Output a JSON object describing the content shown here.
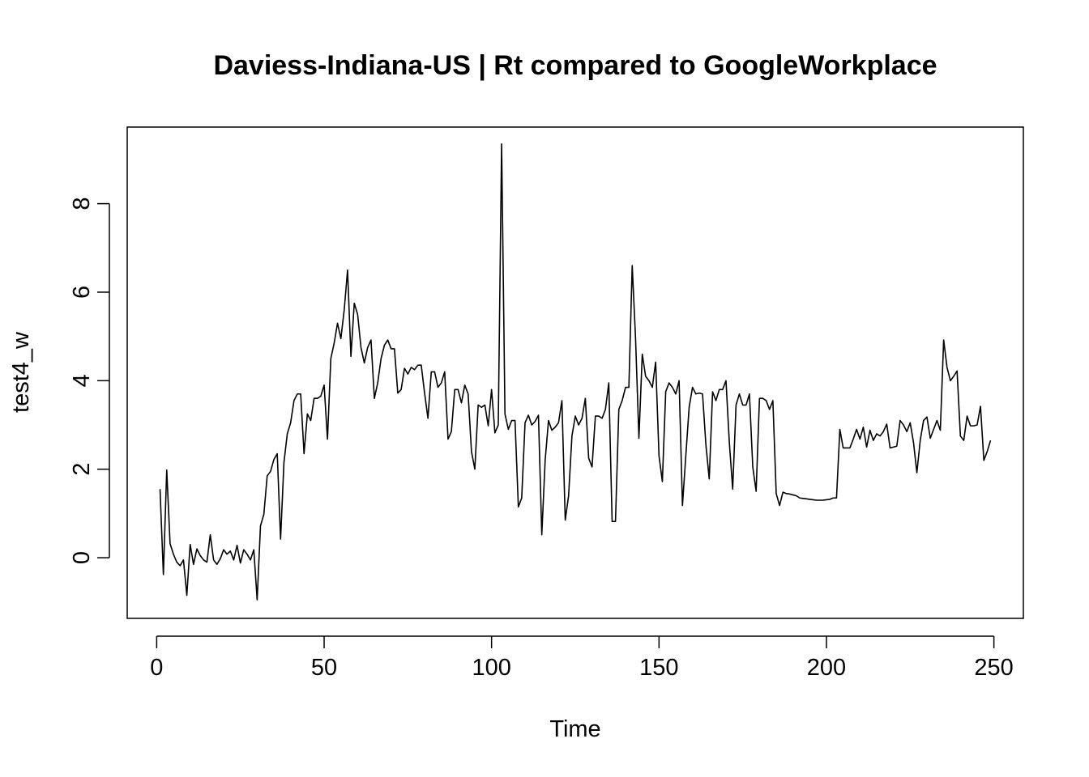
{
  "chart_data": {
    "type": "line",
    "title": "Daviess-Indiana-US | Rt compared to GoogleWorkplace",
    "xlabel": "Time",
    "ylabel": "test4_w",
    "xlim": [
      -8.8,
      258.8
    ],
    "ylim": [
      -1.37,
      9.73
    ],
    "x_ticks": [
      0,
      50,
      100,
      150,
      200,
      250
    ],
    "y_ticks": [
      0,
      2,
      4,
      6,
      8
    ],
    "x_tick_labels": [
      "0",
      "50",
      "100",
      "150",
      "200",
      "250"
    ],
    "y_tick_labels": [
      "0",
      "2",
      "4",
      "6",
      "8"
    ],
    "grid": false,
    "legend": "none",
    "line_color": "#000000",
    "x_start": 1,
    "series": [
      {
        "values": [
          1.55,
          -0.38,
          1.98,
          0.32,
          0.08,
          -0.1,
          -0.18,
          -0.05,
          -0.85,
          0.3,
          -0.15,
          0.2,
          0.05,
          -0.05,
          -0.1,
          0.52,
          -0.05,
          -0.15,
          -0.02,
          0.18,
          0.08,
          0.15,
          -0.05,
          0.28,
          -0.12,
          0.18,
          0.08,
          -0.05,
          0.18,
          -0.95,
          0.72,
          0.98,
          1.85,
          1.95,
          2.22,
          2.35,
          0.42,
          2.15,
          2.8,
          3.05,
          3.55,
          3.7,
          3.7,
          2.35,
          3.25,
          3.1,
          3.6,
          3.6,
          3.65,
          3.9,
          2.68,
          4.5,
          4.85,
          5.3,
          4.95,
          5.6,
          6.5,
          4.55,
          5.75,
          5.5,
          4.75,
          4.4,
          4.75,
          4.92,
          3.6,
          3.95,
          4.5,
          4.8,
          4.92,
          4.72,
          4.72,
          3.72,
          3.8,
          4.28,
          4.15,
          4.3,
          4.25,
          4.35,
          4.35,
          3.72,
          3.15,
          4.2,
          4.2,
          3.85,
          3.95,
          4.2,
          2.68,
          2.85,
          3.8,
          3.8,
          3.5,
          3.9,
          3.7,
          2.4,
          2.0,
          3.45,
          3.4,
          3.45,
          2.98,
          3.8,
          2.82,
          3.0,
          9.35,
          3.25,
          2.9,
          3.1,
          3.1,
          1.15,
          1.35,
          3.05,
          3.22,
          3.0,
          3.08,
          3.22,
          0.52,
          2.2,
          3.1,
          2.88,
          2.95,
          3.05,
          3.55,
          0.85,
          1.4,
          2.75,
          3.2,
          3.0,
          3.15,
          3.6,
          2.25,
          2.05,
          3.2,
          3.2,
          3.15,
          3.35,
          3.95,
          0.82,
          0.82,
          3.35,
          3.55,
          3.85,
          3.85,
          6.6,
          4.95,
          2.7,
          4.6,
          4.1,
          4.0,
          3.85,
          4.42,
          2.3,
          1.72,
          3.75,
          3.95,
          3.85,
          3.7,
          4.0,
          1.18,
          2.3,
          3.4,
          3.85,
          3.7,
          3.72,
          3.7,
          2.55,
          1.78,
          3.75,
          3.55,
          3.8,
          3.8,
          4.0,
          2.6,
          1.55,
          3.45,
          3.7,
          3.45,
          3.45,
          3.7,
          2.05,
          1.5,
          3.6,
          3.6,
          3.55,
          3.35,
          3.55,
          1.45,
          1.18,
          1.48,
          1.45,
          1.44,
          1.42,
          1.4,
          1.35,
          1.34,
          1.33,
          1.32,
          1.31,
          1.3,
          1.3,
          1.3,
          1.31,
          1.32,
          1.35,
          1.35,
          2.9,
          2.48,
          2.48,
          2.48,
          2.68,
          2.9,
          2.68,
          2.95,
          2.5,
          2.88,
          2.65,
          2.8,
          2.75,
          2.85,
          3.02,
          2.48,
          2.5,
          2.52,
          3.1,
          3.0,
          2.85,
          3.05,
          2.6,
          1.92,
          2.65,
          3.1,
          3.18,
          2.7,
          2.9,
          3.1,
          2.88,
          4.92,
          4.3,
          4.0,
          4.1,
          4.22,
          2.75,
          2.65,
          3.2,
          2.98,
          2.98,
          3.0,
          3.42,
          2.2,
          2.4,
          2.65
        ]
      }
    ]
  }
}
